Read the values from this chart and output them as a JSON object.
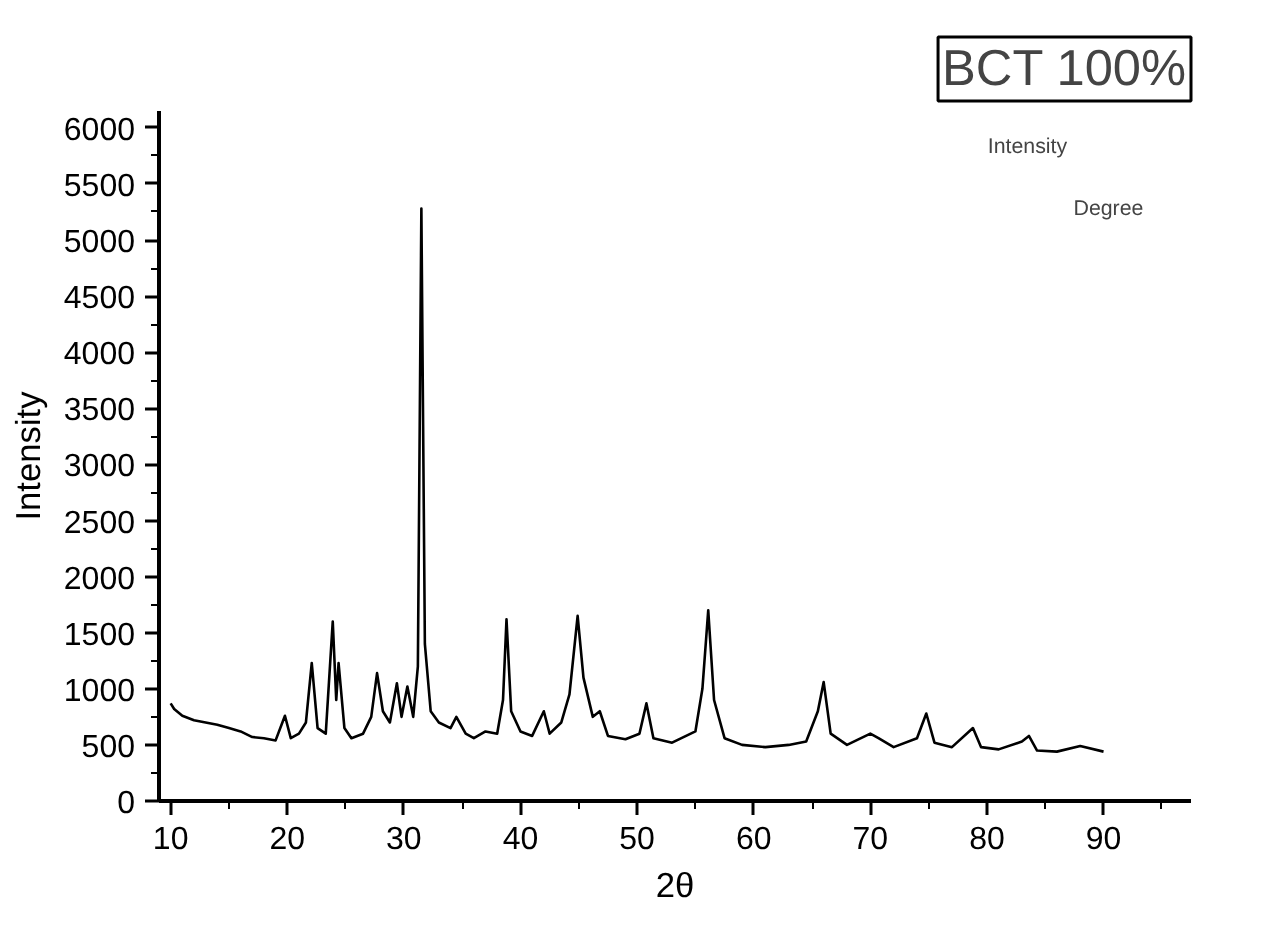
{
  "chart_data": {
    "type": "line",
    "title": "BCT 100%",
    "xlabel": "2θ",
    "ylabel": "Intensity",
    "annotations": [
      "Intensity",
      "Degree"
    ],
    "series": [
      {
        "color": "#000000",
        "x": [
          10,
          10.3,
          11,
          12,
          13,
          14,
          15,
          16,
          17,
          18,
          19,
          19.8,
          20.3,
          21,
          21.6,
          22.1,
          22.6,
          23.3,
          23.9,
          24.2,
          24.4,
          24.9,
          25.5,
          26.5,
          27.2,
          27.7,
          28.2,
          28.8,
          29.4,
          29.8,
          30.3,
          30.8,
          31.2,
          31.5,
          31.8,
          32.3,
          33,
          34,
          34.5,
          35.3,
          36,
          37,
          38,
          38.5,
          38.8,
          39.2,
          40,
          41,
          42,
          42.5,
          43.5,
          44.2,
          44.9,
          45.4,
          46.2,
          46.8,
          47.5,
          49,
          50.2,
          50.8,
          51.4,
          53,
          55,
          55.6,
          56.1,
          56.6,
          57.5,
          59,
          61,
          63,
          64.5,
          65.5,
          66,
          66.6,
          68,
          70,
          70.7,
          72,
          74,
          74.8,
          75.5,
          77,
          78.8,
          79.5,
          81,
          83,
          83.6,
          84.3,
          86,
          88,
          90
        ],
        "values": [
          870,
          820,
          760,
          720,
          700,
          680,
          650,
          620,
          570,
          560,
          540,
          760,
          560,
          600,
          700,
          1230,
          650,
          600,
          1600,
          900,
          1230,
          650,
          560,
          600,
          750,
          1140,
          800,
          700,
          1050,
          750,
          1020,
          750,
          1200,
          5280,
          1400,
          800,
          700,
          650,
          750,
          600,
          560,
          620,
          600,
          900,
          1620,
          800,
          620,
          580,
          800,
          600,
          700,
          950,
          1650,
          1100,
          750,
          800,
          580,
          550,
          600,
          870,
          560,
          520,
          620,
          1000,
          1700,
          900,
          560,
          500,
          480,
          500,
          530,
          800,
          1060,
          600,
          500,
          600,
          560,
          480,
          560,
          780,
          520,
          480,
          650,
          480,
          460,
          530,
          580,
          450,
          440,
          490,
          440
        ]
      }
    ],
    "xlim": [
      9,
      97.5
    ],
    "ylim": [
      0,
      6150
    ],
    "xticks": [
      10,
      {
        "value": 15,
        "label": null
      },
      20,
      {
        "value": 25,
        "label": null
      },
      30,
      {
        "value": 35,
        "label": null
      },
      40,
      {
        "value": 45,
        "label": null
      },
      50,
      {
        "value": 55,
        "label": null
      },
      60,
      {
        "value": 65,
        "label": null
      },
      70,
      {
        "value": 75,
        "label": null
      },
      80,
      {
        "value": 85,
        "label": null
      },
      90,
      {
        "value": 95,
        "label": null
      }
    ],
    "yticks": [
      0,
      {
        "value": 250,
        "label": null
      },
      500,
      {
        "value": 750,
        "label": null
      },
      1000,
      {
        "value": 1250,
        "label": null
      },
      1500,
      {
        "value": 1750,
        "label": null
      },
      2000,
      {
        "value": 2250,
        "label": null
      },
      2500,
      {
        "value": 2750,
        "label": null
      },
      3000,
      {
        "value": 3250,
        "label": null
      },
      3500,
      {
        "value": 3750,
        "label": null
      },
      4000,
      {
        "value": 4250,
        "label": null
      },
      4500,
      {
        "value": 4750,
        "label": null
      },
      5000,
      {
        "value": 5250,
        "label": null
      },
      5500,
      {
        "value": 5750,
        "label": null
      },
      6000
    ],
    "grid": false,
    "marker": "none",
    "line_style": "solid"
  }
}
